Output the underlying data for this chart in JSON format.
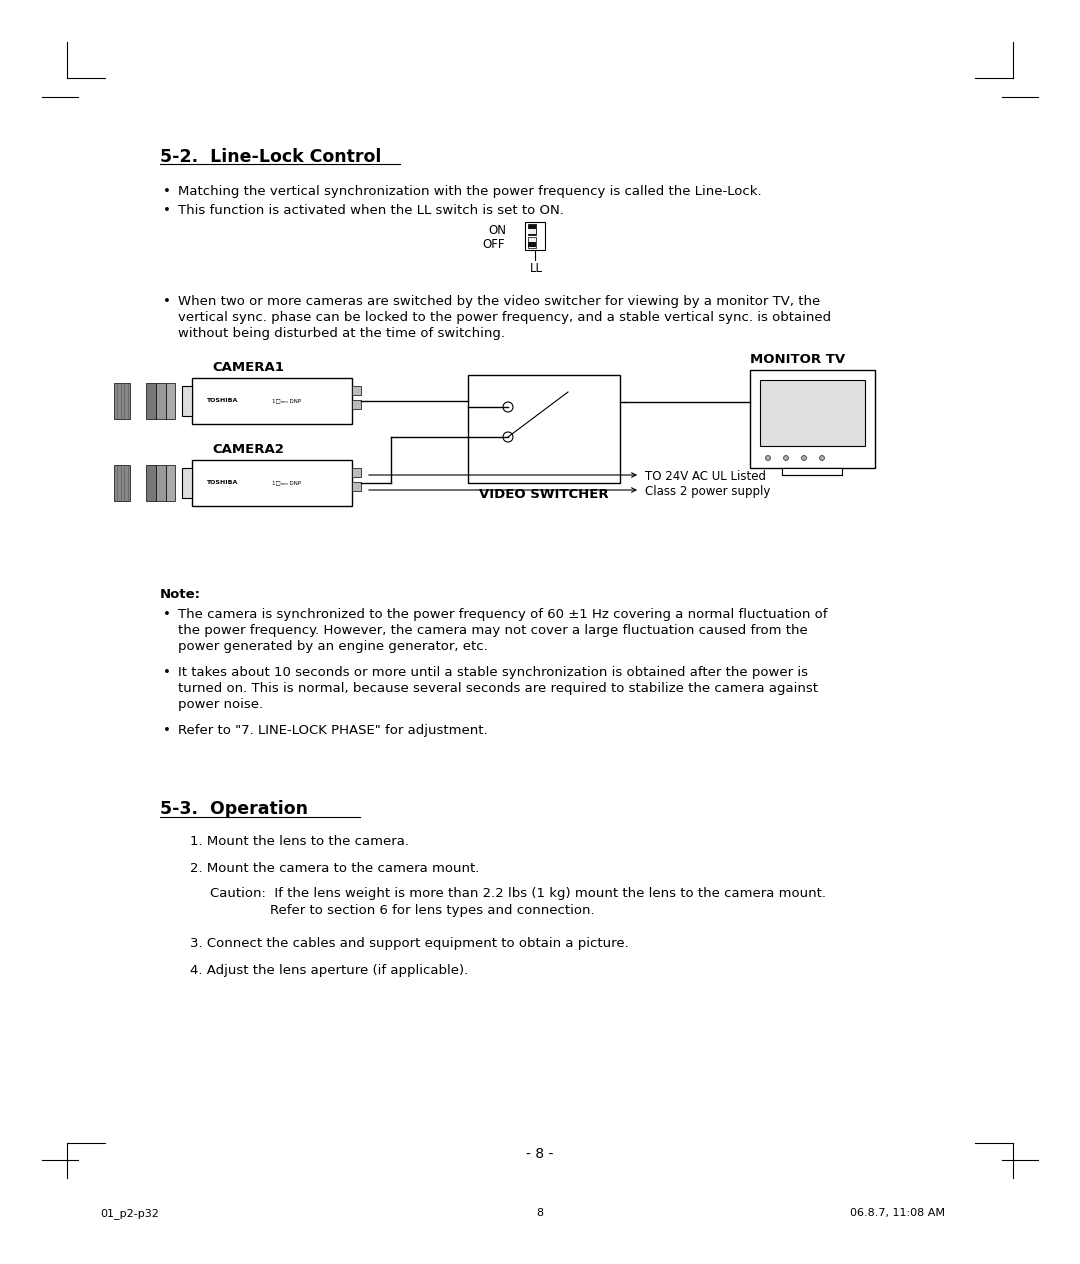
{
  "bg_color": "#ffffff",
  "section_52_title": "5-2.  Line-Lock Control",
  "bullet1": "Matching the vertical synchronization with the power frequency is called the Line-Lock.",
  "bullet2": "This function is activated when the LL switch is set to ON.",
  "bullet3_line1": "When two or more cameras are switched by the video switcher for viewing by a monitor TV, the",
  "bullet3_line2": "vertical sync. phase can be locked to the power frequency, and a stable vertical sync. is obtained",
  "bullet3_line3": "without being disturbed at the time of switching.",
  "cam1_label": "CAMERA1",
  "cam2_label": "CAMERA2",
  "monitor_label": "MONITOR TV",
  "switcher_label": "VIDEO SWITCHER",
  "power_line1": "TO 24V AC UL Listed",
  "power_line2": "Class 2 power supply",
  "note_title": "Note:",
  "note1_line1": "The camera is synchronized to the power frequency of 60 ±1 Hz covering a normal fluctuation of",
  "note1_line2": "the power frequency. However, the camera may not cover a large fluctuation caused from the",
  "note1_line3": "power generated by an engine generator, etc.",
  "note2_line1": "It takes about 10 seconds or more until a stable synchronization is obtained after the power is",
  "note2_line2": "turned on. This is normal, because several seconds are required to stabilize the camera against",
  "note2_line3": "power noise.",
  "note3": "Refer to \"7. LINE-LOCK PHASE\" for adjustment.",
  "section_53_title": "5-3.  Operation",
  "op1": "1. Mount the lens to the camera.",
  "op2": "2. Mount the camera to the camera mount.",
  "caution_line1": "Caution:  If the lens weight is more than 2.2 lbs (1 kg) mount the lens to the camera mount.",
  "caution_line2": "Refer to section 6 for lens types and connection.",
  "op3": "3. Connect the cables and support equipment to obtain a picture.",
  "op4": "4. Adjust the lens aperture (if applicable).",
  "page_num": "- 8 -",
  "footer_left": "01_p2-p32",
  "footer_center": "8",
  "footer_right": "06.8.7, 11:08 AM"
}
